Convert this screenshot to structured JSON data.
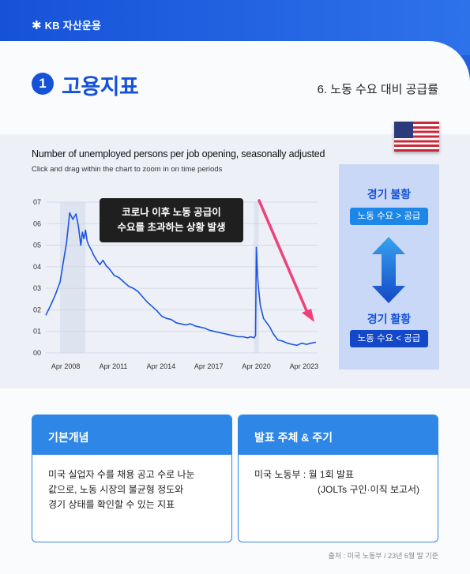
{
  "header": {
    "logo_mark": "✱",
    "brand": "KB 자산운용"
  },
  "section": {
    "number": "1",
    "title": "고용지표",
    "subtitle": "6. 노동 수요 대비 공급률"
  },
  "flag": {
    "name": "us-flag-icon"
  },
  "chart_data": {
    "type": "line",
    "title": "Number of unemployed persons per job opening, seasonally adjusted",
    "subtitle": "Click and drag within the chart to zoom in on time periods",
    "ytick_labels": [
      "00",
      "01",
      "02",
      "03",
      "04",
      "05",
      "06",
      "07"
    ],
    "ylim": [
      0,
      7
    ],
    "xtick_labels": [
      "Apr 2008",
      "Apr 2011",
      "Apr 2014",
      "Apr 2017",
      "Apr 2020",
      "Apr 2023"
    ],
    "xtick_values": [
      2008.25,
      2011.25,
      2014.25,
      2017.25,
      2020.25,
      2023.25
    ],
    "xlim": [
      2007.0,
      2024.1
    ],
    "grid": true,
    "recession_shading": [
      [
        2007.9,
        2009.5
      ],
      [
        2020.1,
        2020.4
      ]
    ],
    "colors": {
      "line": "#1b55e0",
      "shade": "#dde3ef",
      "grid": "#cfd6e4",
      "arrow": "#f0407a"
    },
    "x": [
      2007.0,
      2007.3,
      2007.6,
      2007.9,
      2008.1,
      2008.3,
      2008.5,
      2008.7,
      2008.9,
      2009.05,
      2009.2,
      2009.3,
      2009.4,
      2009.5,
      2009.6,
      2009.7,
      2009.85,
      2010.0,
      2010.2,
      2010.4,
      2010.6,
      2010.8,
      2011.0,
      2011.3,
      2011.6,
      2011.9,
      2012.2,
      2012.5,
      2012.8,
      2013.1,
      2013.4,
      2013.7,
      2014.0,
      2014.3,
      2014.6,
      2014.9,
      2015.2,
      2015.5,
      2015.8,
      2016.1,
      2016.4,
      2016.7,
      2017.0,
      2017.3,
      2017.6,
      2017.9,
      2018.2,
      2018.5,
      2018.8,
      2019.1,
      2019.4,
      2019.7,
      2019.9,
      2020.1,
      2020.2,
      2020.25,
      2020.32,
      2020.4,
      2020.5,
      2020.7,
      2020.9,
      2021.1,
      2021.3,
      2021.6,
      2021.9,
      2022.2,
      2022.5,
      2022.8,
      2023.1,
      2023.4,
      2023.7,
      2024.0
    ],
    "y": [
      1.75,
      2.2,
      2.7,
      3.3,
      4.2,
      5.1,
      6.5,
      6.2,
      6.45,
      5.9,
      5.0,
      5.6,
      5.3,
      5.7,
      5.2,
      5.0,
      4.8,
      4.55,
      4.3,
      4.1,
      4.3,
      4.05,
      3.9,
      3.6,
      3.5,
      3.3,
      3.1,
      3.0,
      2.85,
      2.6,
      2.35,
      2.15,
      1.95,
      1.7,
      1.6,
      1.55,
      1.4,
      1.35,
      1.3,
      1.35,
      1.25,
      1.2,
      1.15,
      1.05,
      1.0,
      0.95,
      0.9,
      0.85,
      0.8,
      0.75,
      0.75,
      0.7,
      0.75,
      0.7,
      0.8,
      4.9,
      3.6,
      2.9,
      2.2,
      1.6,
      1.4,
      1.2,
      0.9,
      0.6,
      0.55,
      0.45,
      0.4,
      0.35,
      0.45,
      0.4,
      0.45,
      0.5
    ]
  },
  "callout": {
    "line1": "코로나 이후 노동 공급이",
    "line2": "수요를 초과하는 상황 발생"
  },
  "side_panel": {
    "top_label": "경기 불황",
    "top_pill": "노동 수요 > 공급",
    "bottom_label": "경기 활황",
    "bottom_pill": "노동 수요 < 공급"
  },
  "card_left": {
    "title": "기본개념",
    "lines": [
      "미국 실업자 수를 채용 공고 수로 나눈",
      "값으로, 노동 시장의 불균형 정도와",
      "경기 상태를 확인할 수 있는 지표"
    ]
  },
  "card_right": {
    "title": "발표 주체 & 주기",
    "org": "미국 노동부 : 월 1회 발표",
    "publication": "(JOLTs 구인·이직 보고서)"
  },
  "source": "출처 : 미국 노동부 / 23년 6월 말 기준"
}
